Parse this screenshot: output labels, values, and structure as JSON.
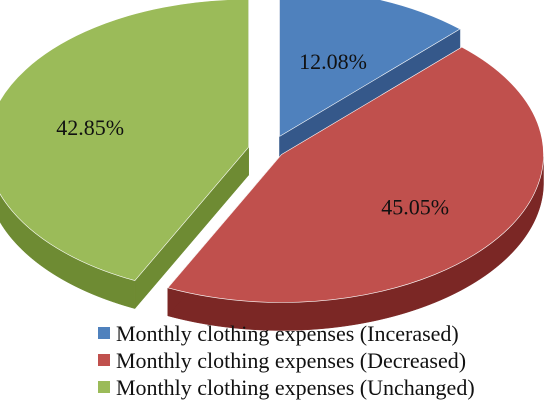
{
  "chart_data": {
    "type": "pie",
    "style": "3d-exploded",
    "legend_position": "bottom",
    "series": [
      {
        "name": "Monthly clothing expenses (Incerased)",
        "value": 12.08,
        "label": "12.08%",
        "color": "#4F81BD",
        "side_color": "#35588A"
      },
      {
        "name": "Monthly clothing expenses (Decreased)",
        "value": 45.05,
        "label": "45.05%",
        "color": "#C0504D",
        "side_color": "#7B2725"
      },
      {
        "name": "Monthly clothing expenses (Unchanged)",
        "value": 42.85,
        "label": "42.85%",
        "color": "#9BBB59",
        "side_color": "#6E8B33"
      }
    ]
  }
}
